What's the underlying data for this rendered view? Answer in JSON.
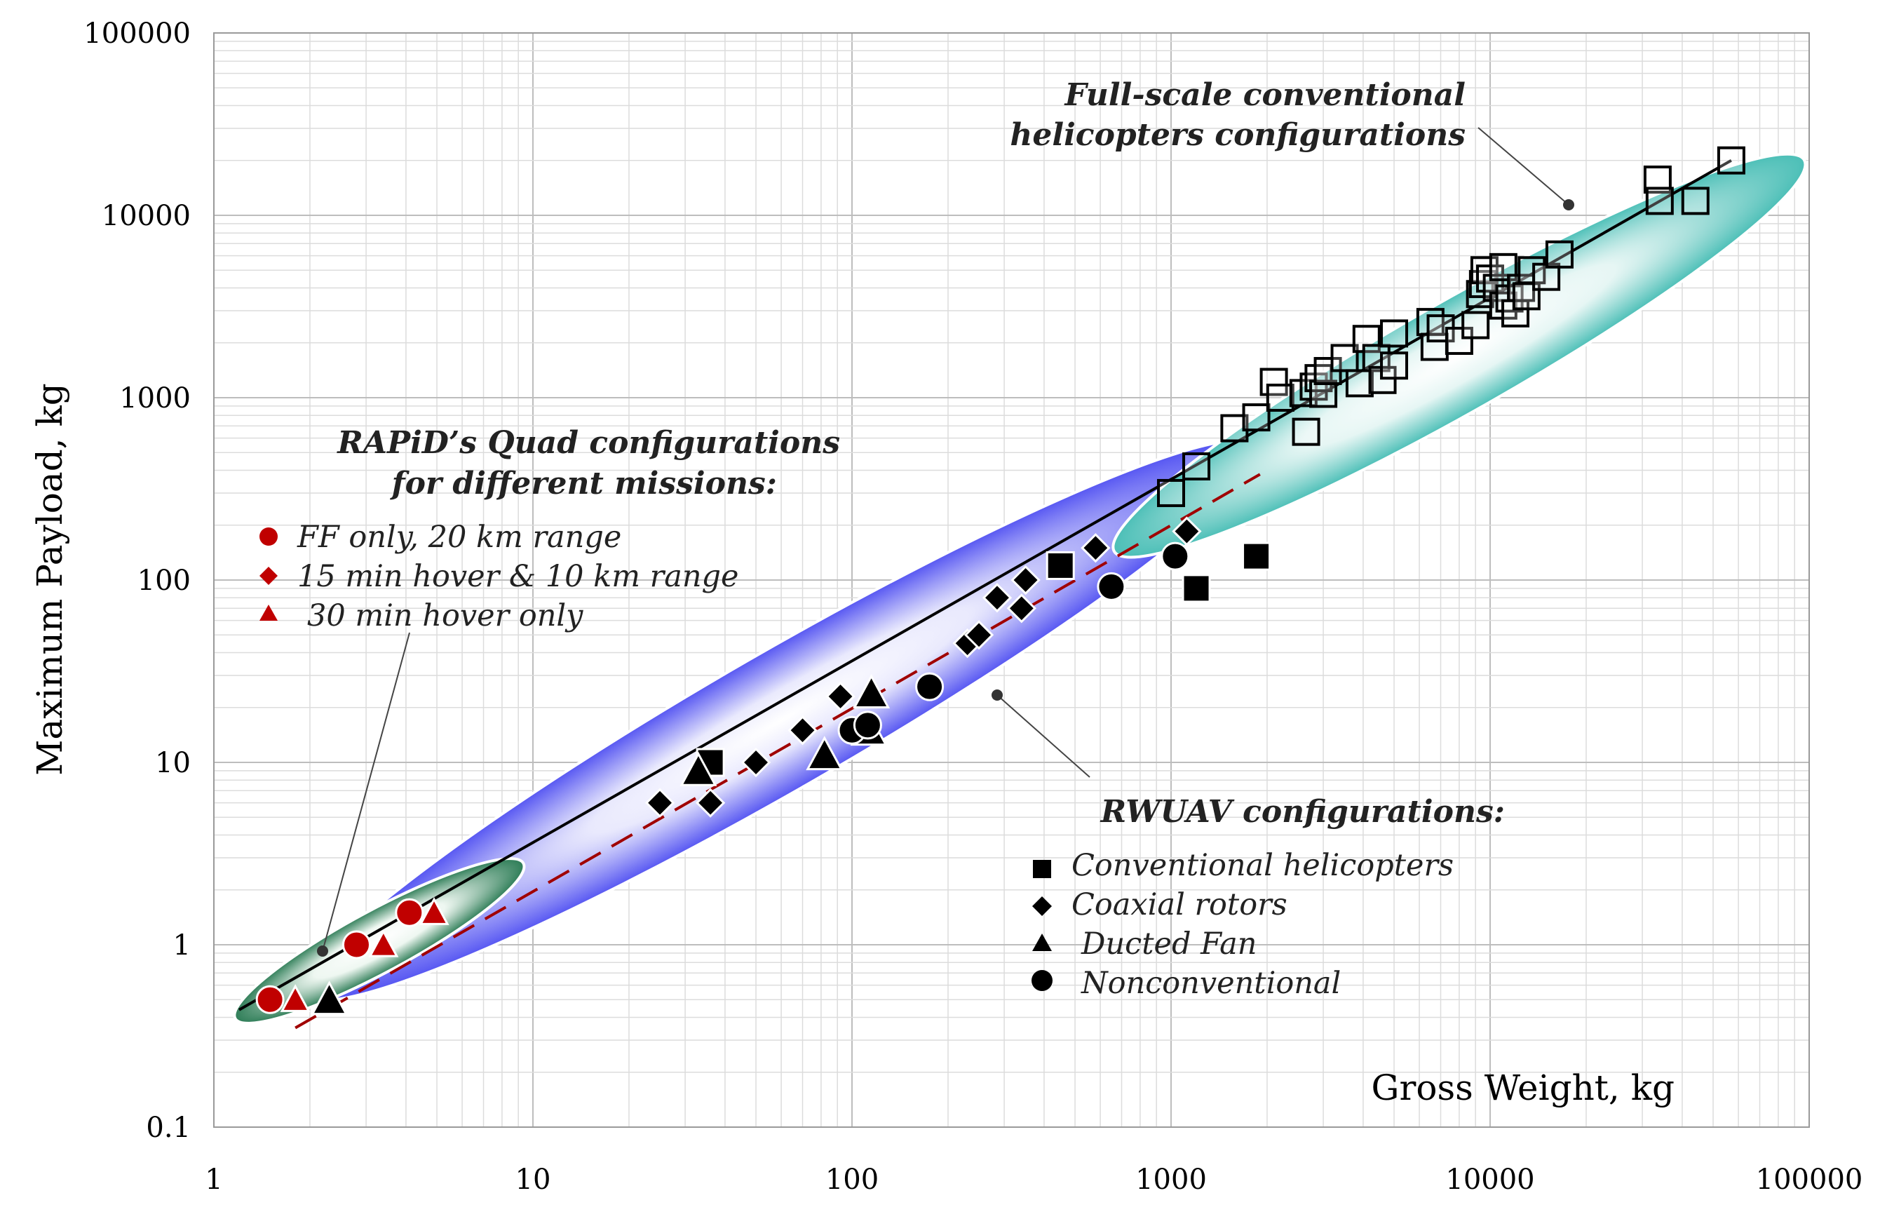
{
  "chart_data": {
    "type": "scatter",
    "xscale": "log",
    "yscale": "log",
    "xlabel": "Gross Weight, kg",
    "ylabel": "Maximum Payload, kg",
    "xlim": [
      1,
      100000
    ],
    "ylim": [
      0.1,
      100000
    ],
    "grid": true,
    "x_ticks": [
      "1",
      "10",
      "100",
      "1000",
      "10000",
      "100000"
    ],
    "y_ticks": [
      "0.1",
      "1",
      "10",
      "100",
      "1000",
      "10000",
      "100000"
    ],
    "colors": {
      "rapid": "#c00000",
      "rwuav": "#000000",
      "fullscale": "#000000",
      "regions": [
        "#2e8b57",
        "#5a5af5",
        "#57c7c0"
      ],
      "trend_solid": "#000000",
      "trend_dashed": "#a00000"
    },
    "annotations": {
      "fullscale_title": [
        "Full-scale conventional",
        "helicopters configurations"
      ],
      "rapid_title": [
        "RAPiD’s Quad configurations",
        "for different missions:"
      ],
      "rwuav_title": "RWUAV configurations:"
    },
    "legend_rapid": [
      {
        "marker": "circle",
        "label": "FF only, 20 km range"
      },
      {
        "marker": "diamond",
        "label": "15 min hover & 10 km range"
      },
      {
        "marker": "triangle",
        "label": "30 min hover only"
      }
    ],
    "legend_rwuav": [
      {
        "marker": "square",
        "label": "Conventional helicopters"
      },
      {
        "marker": "diamond",
        "label": "Coaxial rotors"
      },
      {
        "marker": "triangle",
        "label": "Ducted Fan"
      },
      {
        "marker": "circle",
        "label": "Nonconventional"
      }
    ],
    "trend_lines": [
      {
        "name": "RWUAV / full-scale fit",
        "style": "solid",
        "points": [
          [
            1.2,
            0.44
          ],
          [
            57000,
            20000
          ]
        ]
      },
      {
        "name": "RAPiD quad fit",
        "style": "dashed",
        "points": [
          [
            1.8,
            0.35
          ],
          [
            1900,
            380
          ]
        ]
      }
    ],
    "regions": [
      {
        "name": "RAPiD quads",
        "center": [
          3.3,
          1.05
        ],
        "x_range": [
          1.0,
          8.0
        ],
        "y_range": [
          0.38,
          2.7
        ]
      },
      {
        "name": "RWUAV",
        "center": [
          60,
          17
        ],
        "x_range": [
          1.9,
          1800
        ],
        "y_range": [
          0.4,
          400
        ]
      },
      {
        "name": "Full-scale helicopters",
        "center": [
          8000,
          1700
        ],
        "x_range": [
          550,
          80000
        ],
        "y_range": [
          200,
          28000
        ]
      }
    ],
    "series": [
      {
        "name": "RAPiD FF only, 20 km range",
        "marker": "circle",
        "color": "red",
        "points": [
          [
            1.5,
            0.5
          ],
          [
            2.8,
            1.0
          ],
          [
            4.1,
            1.5
          ]
        ]
      },
      {
        "name": "RAPiD 15 min hover & 10 km range",
        "marker": "diamond",
        "color": "red",
        "points": [
          [
            1.5,
            0.5
          ],
          [
            2.8,
            1.0
          ],
          [
            4.1,
            1.5
          ]
        ]
      },
      {
        "name": "RAPiD 30 min hover only",
        "marker": "triangle",
        "color": "red",
        "points": [
          [
            1.8,
            0.5
          ],
          [
            3.4,
            1.0
          ],
          [
            4.9,
            1.5
          ]
        ]
      },
      {
        "name": "Conventional helicopters",
        "marker": "square",
        "color": "black",
        "points": [
          [
            36,
            10
          ],
          [
            450,
            120
          ],
          [
            1200,
            90
          ],
          [
            1850,
            135
          ]
        ]
      },
      {
        "name": "Coaxial rotors",
        "marker": "diamond",
        "color": "black",
        "points": [
          [
            25,
            6
          ],
          [
            36,
            6
          ],
          [
            50,
            10
          ],
          [
            70,
            15
          ],
          [
            92,
            23
          ],
          [
            230,
            45
          ],
          [
            250,
            50
          ],
          [
            285,
            80
          ],
          [
            340,
            70
          ],
          [
            350,
            100
          ],
          [
            580,
            150
          ],
          [
            1120,
            185
          ]
        ]
      },
      {
        "name": "Ducted Fan",
        "marker": "triangle",
        "color": "black",
        "points": [
          [
            2.3,
            0.5
          ],
          [
            33,
            9
          ],
          [
            82,
            11
          ],
          [
            113,
            15
          ],
          [
            115,
            24
          ]
        ]
      },
      {
        "name": "Nonconventional",
        "marker": "circle",
        "color": "black",
        "points": [
          [
            100,
            15
          ],
          [
            112,
            16
          ],
          [
            175,
            26
          ],
          [
            650,
            92
          ],
          [
            1030,
            135
          ]
        ]
      },
      {
        "name": "Full-scale conventional helicopters",
        "marker": "square-open",
        "color": "black",
        "points": [
          [
            1000,
            300
          ],
          [
            1200,
            420
          ],
          [
            1580,
            680
          ],
          [
            1850,
            780
          ],
          [
            2100,
            1220
          ],
          [
            2200,
            1000
          ],
          [
            2600,
            1060
          ],
          [
            2650,
            650
          ],
          [
            2800,
            1150
          ],
          [
            2900,
            1280
          ],
          [
            3000,
            1050
          ],
          [
            3100,
            1400
          ],
          [
            3500,
            1650
          ],
          [
            3900,
            1200
          ],
          [
            4100,
            2100
          ],
          [
            4400,
            1650
          ],
          [
            4600,
            1250
          ],
          [
            5000,
            2250
          ],
          [
            5000,
            1500
          ],
          [
            6500,
            2600
          ],
          [
            6700,
            1900
          ],
          [
            7000,
            2400
          ],
          [
            8000,
            2050
          ],
          [
            9000,
            2500
          ],
          [
            9300,
            3700
          ],
          [
            9500,
            4200
          ],
          [
            9600,
            5000
          ],
          [
            10000,
            4500
          ],
          [
            10500,
            4000
          ],
          [
            11000,
            3200
          ],
          [
            11000,
            5200
          ],
          [
            11500,
            3500
          ],
          [
            12000,
            2900
          ],
          [
            12500,
            4000
          ],
          [
            13000,
            3600
          ],
          [
            13500,
            5000
          ],
          [
            15000,
            4600
          ],
          [
            16500,
            6100
          ],
          [
            33500,
            15700
          ],
          [
            34000,
            12000
          ],
          [
            44000,
            12000
          ],
          [
            57000,
            20000
          ]
        ]
      }
    ]
  }
}
